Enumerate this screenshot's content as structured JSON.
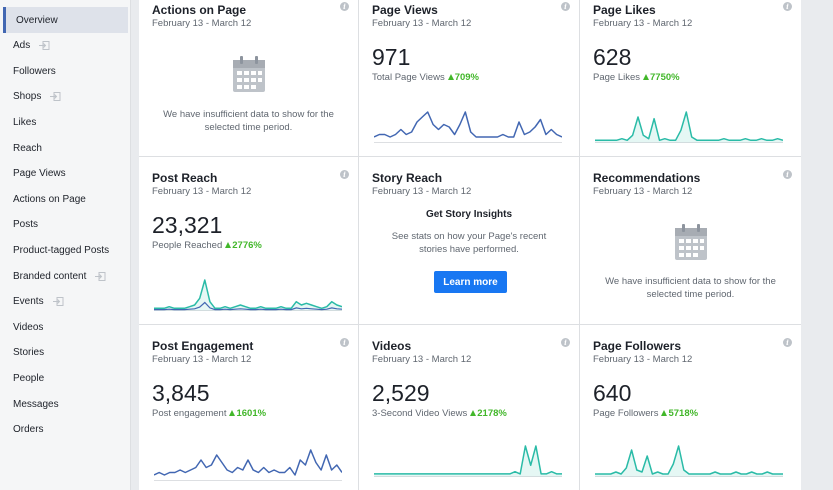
{
  "sidebar": {
    "items": [
      {
        "label": "Overview",
        "active": true,
        "external": false
      },
      {
        "label": "Ads",
        "external": true
      },
      {
        "label": "Followers",
        "external": false
      },
      {
        "label": "Shops",
        "external": true
      },
      {
        "label": "Likes",
        "external": false
      },
      {
        "label": "Reach",
        "external": false
      },
      {
        "label": "Page Views",
        "external": false
      },
      {
        "label": "Actions on Page",
        "external": false
      },
      {
        "label": "Posts",
        "external": false
      },
      {
        "label": "Product-tagged Posts",
        "external": false
      },
      {
        "label": "Branded content",
        "external": true
      },
      {
        "label": "Events",
        "external": true
      },
      {
        "label": "Videos",
        "external": false
      },
      {
        "label": "Stories",
        "external": false
      },
      {
        "label": "People",
        "external": false
      },
      {
        "label": "Messages",
        "external": false
      },
      {
        "label": "Orders",
        "external": false
      }
    ]
  },
  "colors": {
    "accent": "#4267b2",
    "positive": "#42b72a",
    "line_blue": "#4267b2",
    "line_teal": "#2abba7",
    "button": "#1877f2"
  },
  "cards": {
    "actions_on_page": {
      "title": "Actions on Page",
      "date": "February 13 - March 12",
      "message": "We have insufficient data to show for the selected time period.",
      "icon": "calendar-icon"
    },
    "page_views": {
      "title": "Page Views",
      "date": "February 13 - March 12",
      "value": "971",
      "metric": "Total Page Views",
      "delta": "709%"
    },
    "page_likes": {
      "title": "Page Likes",
      "date": "February 13 - March 12",
      "value": "628",
      "metric": "Page Likes",
      "delta": "7750%"
    },
    "post_reach": {
      "title": "Post Reach",
      "date": "February 13 - March 12",
      "value": "23,321",
      "metric": "People Reached",
      "delta": "2776%"
    },
    "story_reach": {
      "title": "Story Reach",
      "date": "February 13 - March 12",
      "heading": "Get Story Insights",
      "text": "See stats on how your Page's recent stories have performed.",
      "button": "Learn more"
    },
    "recommendations": {
      "title": "Recommendations",
      "date": "February 13 - March 12",
      "message": "We have insufficient data to show for the selected time period.",
      "icon": "calendar-icon"
    },
    "post_engagement": {
      "title": "Post Engagement",
      "date": "February 13 - March 12",
      "value": "3,845",
      "metric": "Post engagement",
      "delta": "1601%"
    },
    "videos": {
      "title": "Videos",
      "date": "February 13 - March 12",
      "value": "2,529",
      "metric": "3-Second Video Views",
      "delta": "2178%"
    },
    "page_followers": {
      "title": "Page Followers",
      "date": "February 13 - March 12",
      "value": "640",
      "metric": "Page Followers",
      "delta": "5718%"
    }
  },
  "sparklines": {
    "page_views": {
      "color": "#4267b2",
      "values": [
        2,
        3,
        3,
        2,
        3,
        5,
        3,
        4,
        8,
        10,
        12,
        7,
        5,
        7,
        6,
        3,
        7,
        12,
        4,
        2,
        2,
        2,
        2,
        2,
        3,
        2,
        2,
        8,
        3,
        4,
        6,
        9,
        3,
        5,
        3,
        2
      ]
    },
    "page_likes": {
      "color": "#2abba7",
      "fill": true,
      "values": [
        1,
        1,
        1,
        1,
        1,
        2,
        1,
        4,
        15,
        4,
        2,
        14,
        1,
        2,
        1,
        1,
        7,
        18,
        3,
        1,
        1,
        1,
        1,
        1,
        2,
        1,
        1,
        1,
        2,
        1,
        1,
        2,
        1,
        1,
        2,
        1
      ]
    },
    "post_reach": {
      "color": "#2abba7",
      "secondary_color": "#4267b2",
      "fill": true,
      "values": [
        1,
        1,
        1,
        2,
        1,
        1,
        1,
        2,
        3,
        7,
        18,
        5,
        1,
        1,
        2,
        1,
        2,
        3,
        2,
        1,
        1,
        2,
        1,
        1,
        1,
        2,
        1,
        1,
        5,
        3,
        4,
        3,
        2,
        1,
        2,
        5,
        3,
        2
      ]
    },
    "post_engagement": {
      "color": "#4267b2",
      "values": [
        2,
        3,
        2,
        3,
        3,
        4,
        3,
        4,
        5,
        8,
        5,
        6,
        10,
        7,
        4,
        3,
        5,
        4,
        8,
        4,
        3,
        5,
        3,
        4,
        3,
        3,
        5,
        2,
        8,
        6,
        12,
        7,
        4,
        10,
        4,
        6,
        3
      ]
    },
    "videos": {
      "color": "#2abba7",
      "fill": true,
      "values": [
        1,
        1,
        1,
        1,
        1,
        1,
        1,
        1,
        1,
        1,
        1,
        1,
        1,
        1,
        1,
        1,
        1,
        1,
        1,
        1,
        1,
        1,
        1,
        1,
        1,
        1,
        1,
        2,
        1,
        14,
        5,
        14,
        1,
        1,
        2,
        1,
        1
      ]
    },
    "page_followers": {
      "color": "#2abba7",
      "fill": true,
      "values": [
        1,
        1,
        1,
        1,
        2,
        1,
        4,
        13,
        3,
        2,
        10,
        1,
        2,
        1,
        1,
        6,
        15,
        3,
        1,
        1,
        1,
        1,
        1,
        2,
        1,
        1,
        1,
        2,
        1,
        1,
        2,
        1,
        1,
        2,
        1,
        1,
        1
      ]
    }
  }
}
